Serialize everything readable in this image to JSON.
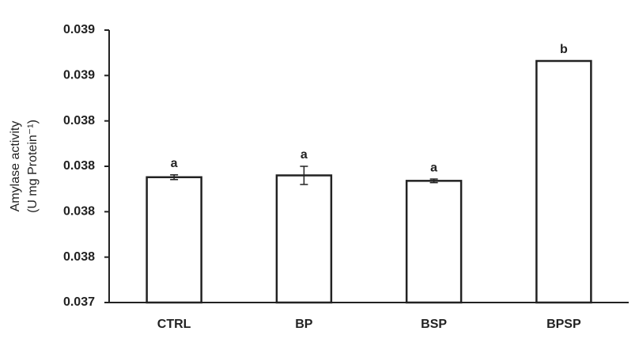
{
  "chart_data": {
    "type": "bar",
    "y_label": [
      "Amylase activity",
      "(U mg Protein⁻¹)"
    ],
    "categories": [
      "CTRL",
      "BP",
      "BSP",
      "BPSP"
    ],
    "values": [
      0.03809,
      0.0381,
      0.03807,
      0.03873
    ],
    "errors": [
      1.3e-05,
      5e-05,
      1e-05,
      0
    ],
    "annotations": [
      "a",
      "a",
      "a",
      "b"
    ],
    "color": "#ffffff",
    "edge_color": "#222222",
    "ylim": [
      0.0374,
      0.0389
    ],
    "yticks": [
      {
        "value": 0.0374,
        "label": "0.037"
      },
      {
        "value": 0.03765,
        "label": "0.038"
      },
      {
        "value": 0.0379,
        "label": "0.038"
      },
      {
        "value": 0.03815,
        "label": "0.038"
      },
      {
        "value": 0.0384,
        "label": "0.038"
      },
      {
        "value": 0.03865,
        "label": "0.039"
      },
      {
        "value": 0.0389,
        "label": "0.039"
      }
    ],
    "grid": false
  }
}
